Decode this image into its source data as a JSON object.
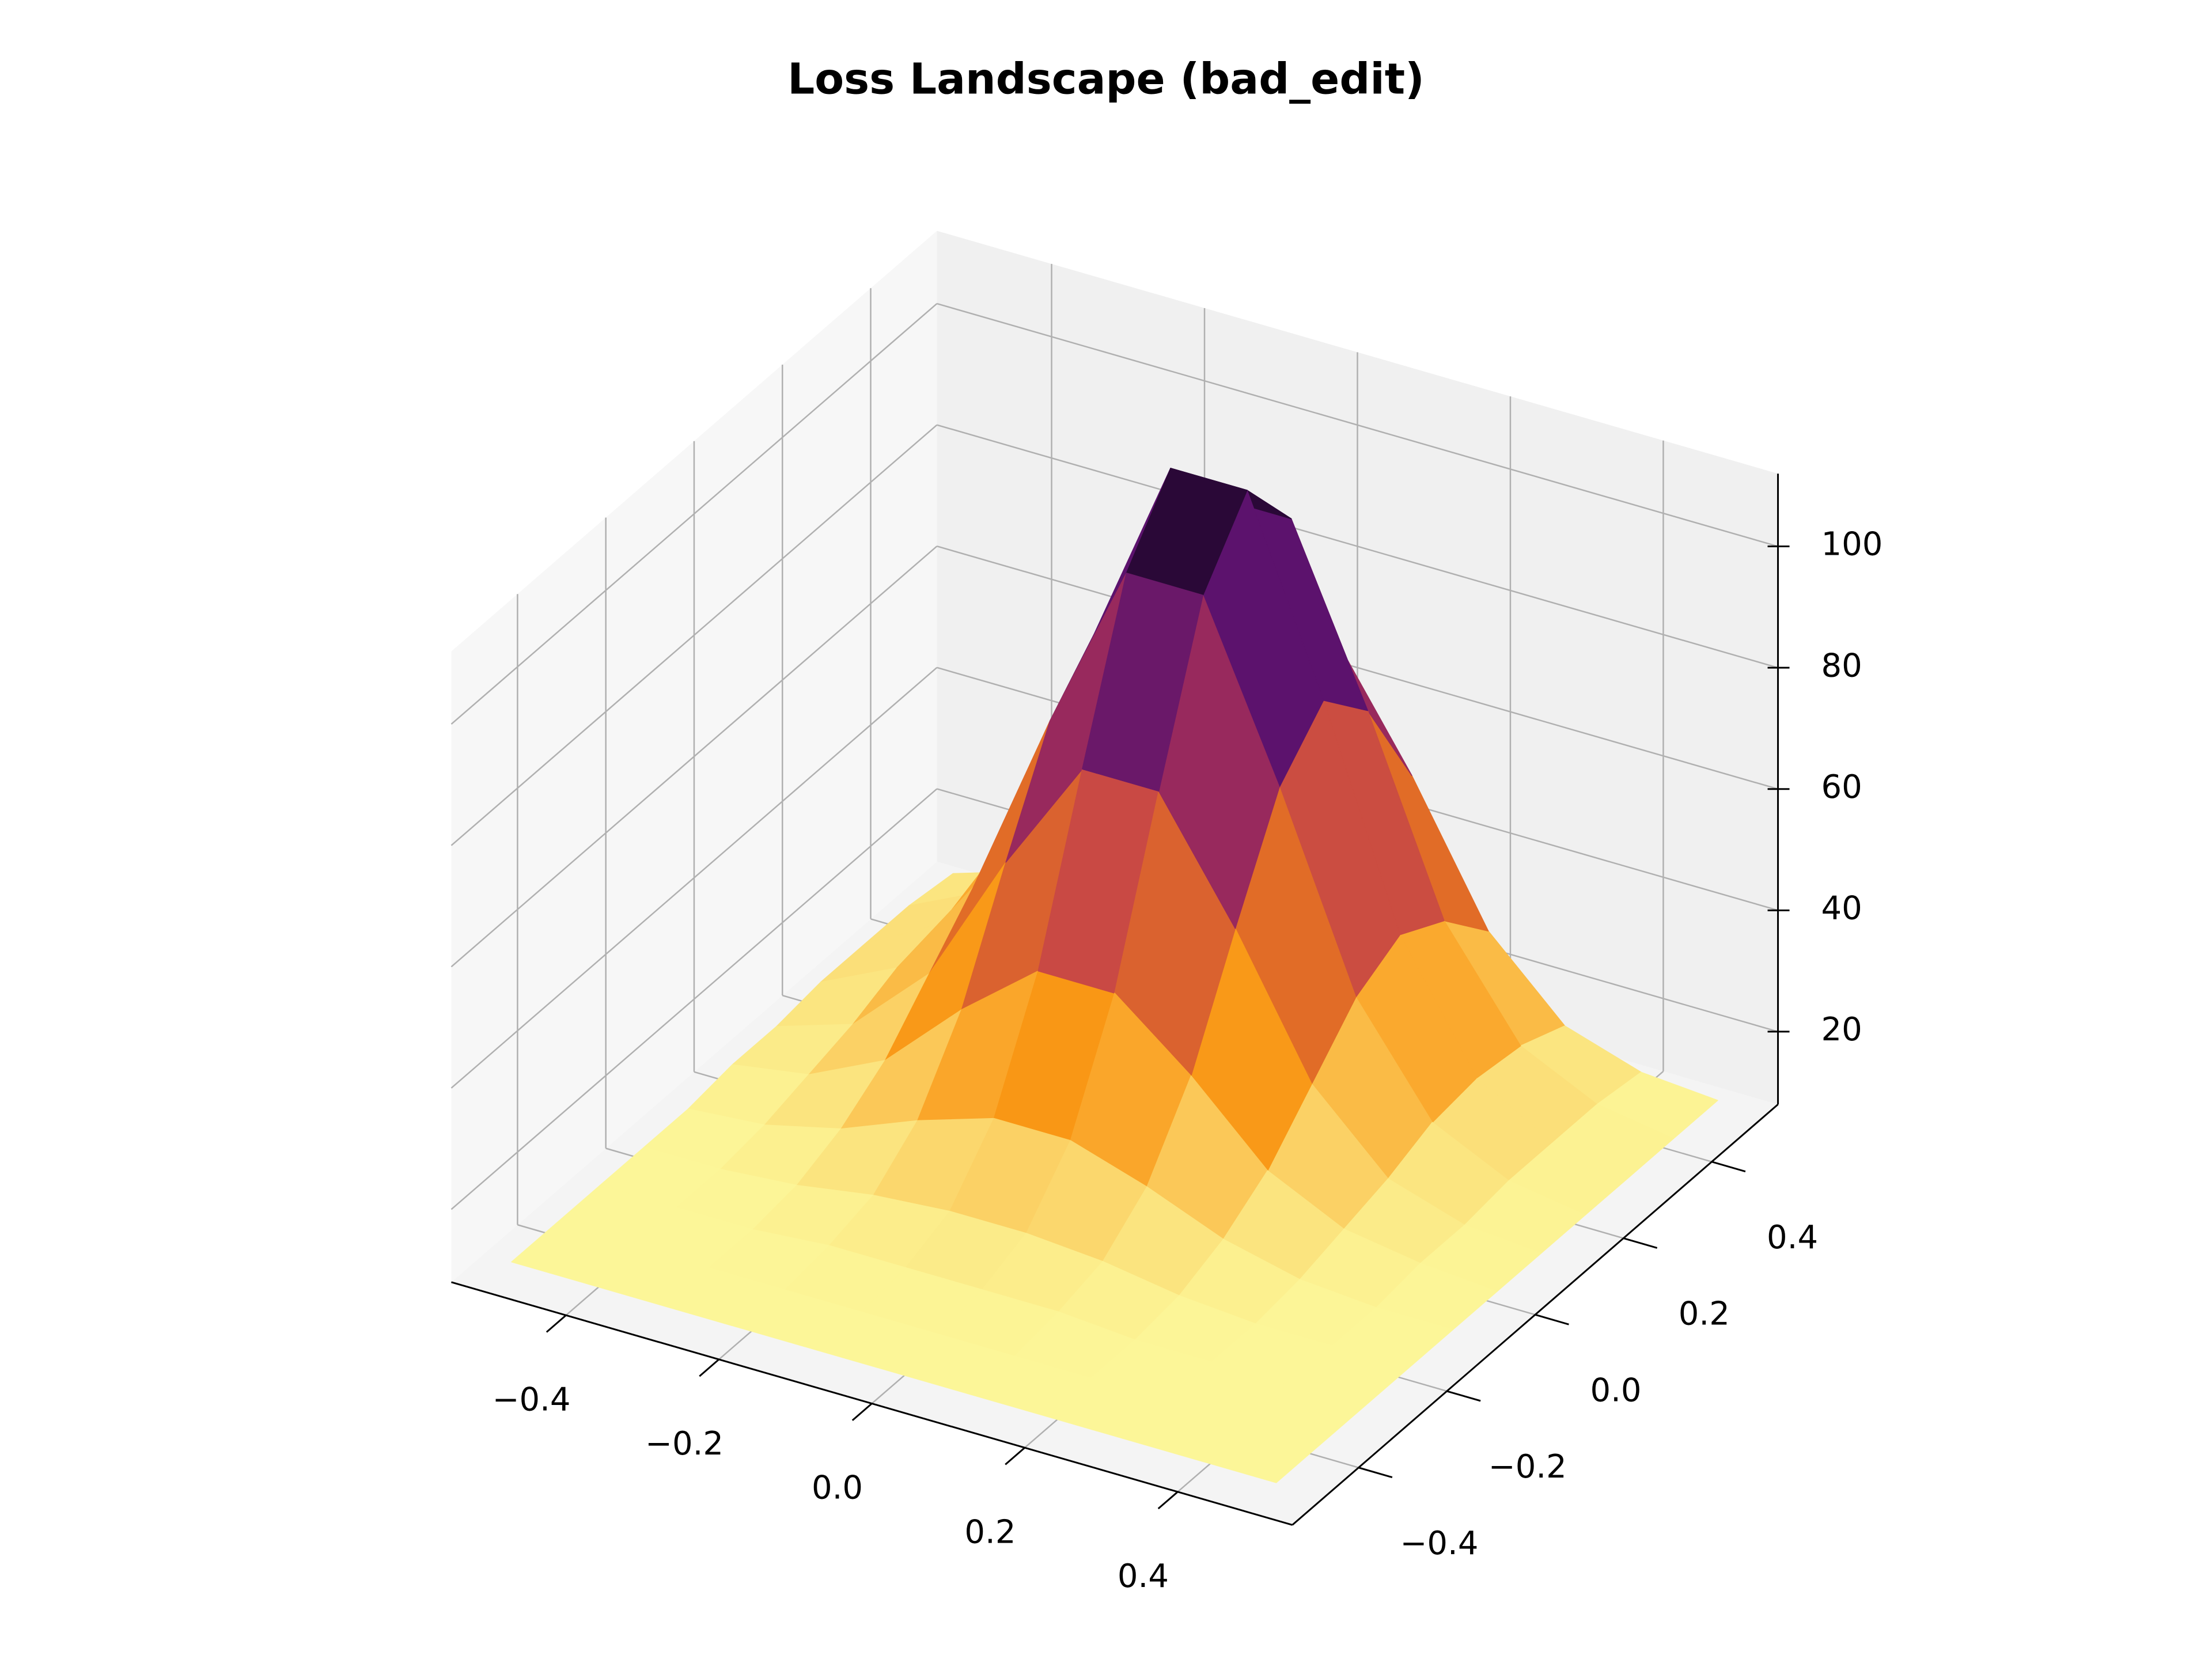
{
  "chart_data": {
    "type": "surface",
    "title": "Loss Landscape (bad_edit)",
    "x": [
      -0.5,
      -0.4,
      -0.3,
      -0.2,
      -0.1,
      0,
      0.1,
      0.2,
      0.3,
      0.4,
      0.5
    ],
    "y": [
      -0.5,
      -0.4,
      -0.3,
      -0.2,
      -0.1,
      0,
      0.1,
      0.2,
      0.3,
      0.4,
      0.5
    ],
    "z": [
      [
        10,
        10,
        10,
        10,
        10,
        10,
        10,
        10,
        10,
        10,
        10
      ],
      [
        10,
        10,
        10,
        10,
        10,
        10,
        10,
        10,
        10,
        10,
        10
      ],
      [
        10,
        10,
        10,
        11,
        11,
        11,
        11,
        10,
        10,
        10,
        10
      ],
      [
        10,
        10,
        11,
        13,
        14,
        14,
        13,
        11,
        10,
        10,
        10
      ],
      [
        10,
        11,
        14,
        19,
        23,
        23,
        19,
        14,
        11,
        10,
        10
      ],
      [
        11,
        13,
        19,
        31,
        41,
        41,
        31,
        19,
        13,
        11,
        10
      ],
      [
        11,
        15,
        27,
        49,
        68,
        68,
        49,
        27,
        15,
        11,
        10
      ],
      [
        12,
        18,
        35,
        66,
        94,
        94,
        66,
        35,
        18,
        12,
        10
      ],
      [
        12,
        19,
        39,
        74,
        105,
        105,
        74,
        39,
        19,
        12,
        10
      ],
      [
        12,
        18,
        35,
        66,
        94,
        94,
        66,
        35,
        18,
        12,
        10
      ],
      [
        11,
        15,
        27,
        49,
        68,
        68,
        49,
        27,
        15,
        11,
        10
      ]
    ],
    "xlim": [
      -0.55,
      0.55
    ],
    "ylim": [
      -0.55,
      0.55
    ],
    "zlim": [
      8,
      112
    ],
    "xticks": [
      {
        "value": -0.4,
        "label": "−0.4"
      },
      {
        "value": -0.2,
        "label": "−0.2"
      },
      {
        "value": 0,
        "label": "0.0"
      },
      0.2,
      0.4
    ],
    "yticks": [
      {
        "value": -0.4,
        "label": "−0.4"
      },
      {
        "value": -0.2,
        "label": "−0.2"
      },
      {
        "value": 0,
        "label": "0.0"
      },
      0.2,
      0.4
    ],
    "zticks": [
      20,
      40,
      60,
      80,
      100
    ],
    "colormap": [
      "#fcffa4",
      "#f98e09",
      "#bc3754",
      "#57106e",
      "#000004"
    ],
    "grid": true
  }
}
